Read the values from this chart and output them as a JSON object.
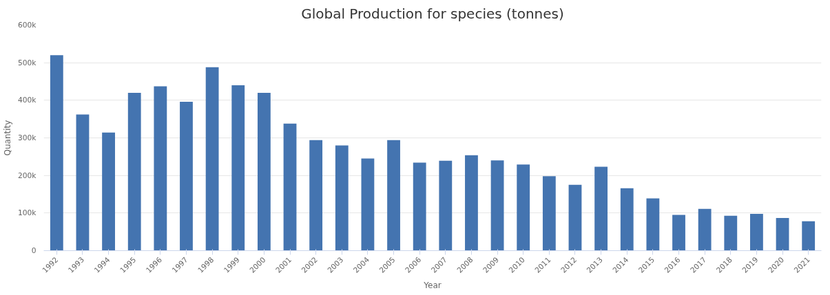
{
  "chart_data": {
    "type": "bar",
    "title": "Global Production for species (tonnes)",
    "xlabel": "Year",
    "ylabel": "Quantity",
    "categories": [
      "1992",
      "1993",
      "1994",
      "1995",
      "1996",
      "1997",
      "1998",
      "1999",
      "2000",
      "2001",
      "2002",
      "2003",
      "2004",
      "2005",
      "2006",
      "2007",
      "2008",
      "2009",
      "2010",
      "2011",
      "2012",
      "2013",
      "2014",
      "2015",
      "2016",
      "2017",
      "2018",
      "2019",
      "2020",
      "2021"
    ],
    "values": [
      520000,
      362000,
      314000,
      420000,
      437000,
      396000,
      488000,
      440000,
      420000,
      338000,
      294000,
      280000,
      245000,
      294000,
      234000,
      239000,
      254000,
      240000,
      229000,
      198000,
      175000,
      223000,
      166000,
      139000,
      95000,
      111000,
      93000,
      98000,
      87000,
      78000
    ],
    "color": "#4474b0",
    "ylim": [
      0,
      600000
    ],
    "yticks": [
      0,
      {
        "value": 100000,
        "label": "100k"
      },
      {
        "value": 200000,
        "label": "200k"
      },
      {
        "value": 300000,
        "label": "300k"
      },
      {
        "value": 400000,
        "label": "400k"
      },
      {
        "value": 500000,
        "label": "500k"
      },
      {
        "value": 600000,
        "label": "600k"
      }
    ],
    "grid": "y"
  }
}
